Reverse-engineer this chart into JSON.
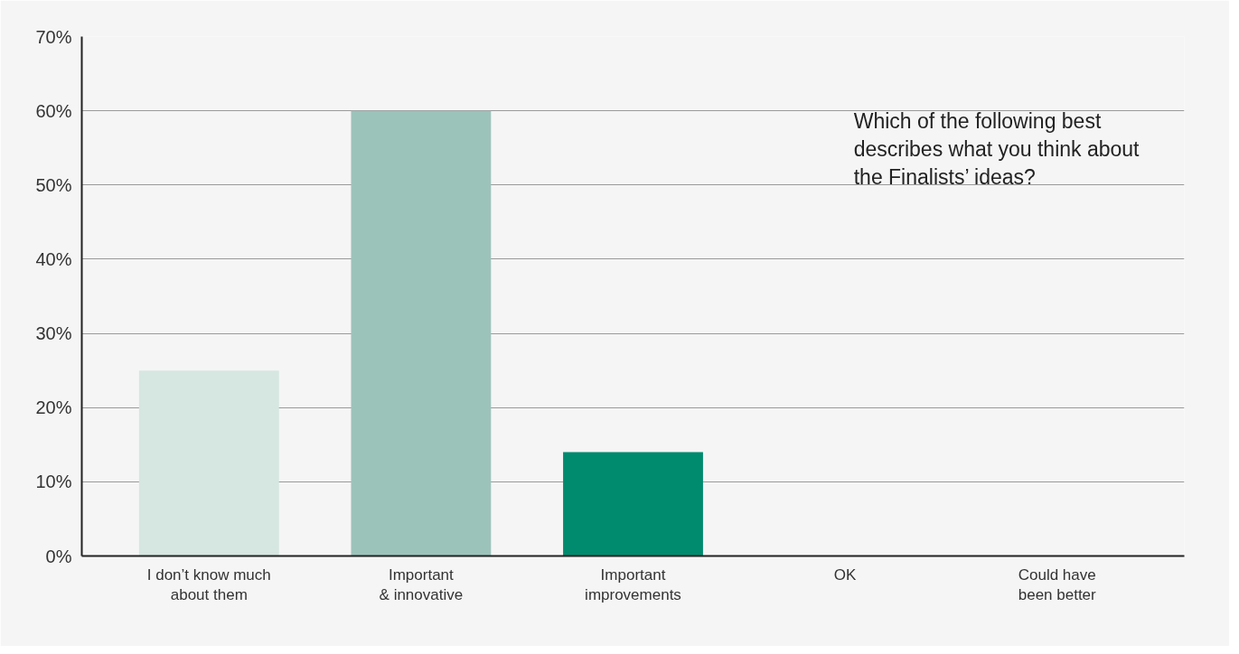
{
  "chart_data": {
    "type": "bar",
    "title": "Which of the following best describes what you think about the Finalists’ ideas?",
    "categories": [
      "I don’t know much\nabout them",
      "Important\n& innovative",
      "Important\nimprovements",
      "OK",
      "Could have\nbeen better"
    ],
    "values": [
      25,
      60,
      14,
      0,
      0
    ],
    "colors": [
      "#d6e6e1",
      "#9cc3ba",
      "#008a6e",
      "#008a6e",
      "#008a6e"
    ],
    "ylim": [
      0,
      70
    ],
    "yticks": [
      {
        "value": 0,
        "label": "0%"
      },
      {
        "value": 10,
        "label": "10%"
      },
      {
        "value": 20,
        "label": "20%"
      },
      {
        "value": 30,
        "label": "30%"
      },
      {
        "value": 40,
        "label": "40%"
      },
      {
        "value": 50,
        "label": "50%"
      },
      {
        "value": 60,
        "label": "60%"
      },
      {
        "value": 70,
        "label": "70%"
      }
    ],
    "grid": "y"
  }
}
